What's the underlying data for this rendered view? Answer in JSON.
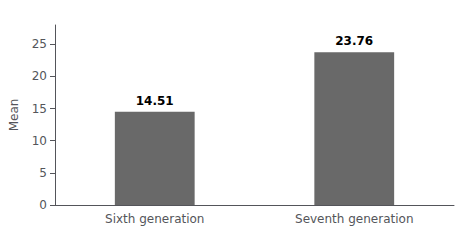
{
  "chart_data": {
    "type": "bar",
    "categories": [
      "Sixth generation",
      "Seventh generation"
    ],
    "values": [
      14.51,
      23.76
    ],
    "color": "#696969",
    "ylabel": "Mean",
    "ylim": [
      0,
      28
    ],
    "yticks": [
      0,
      5,
      10,
      15,
      20,
      25
    ],
    "data_labels": true,
    "grid": false
  }
}
